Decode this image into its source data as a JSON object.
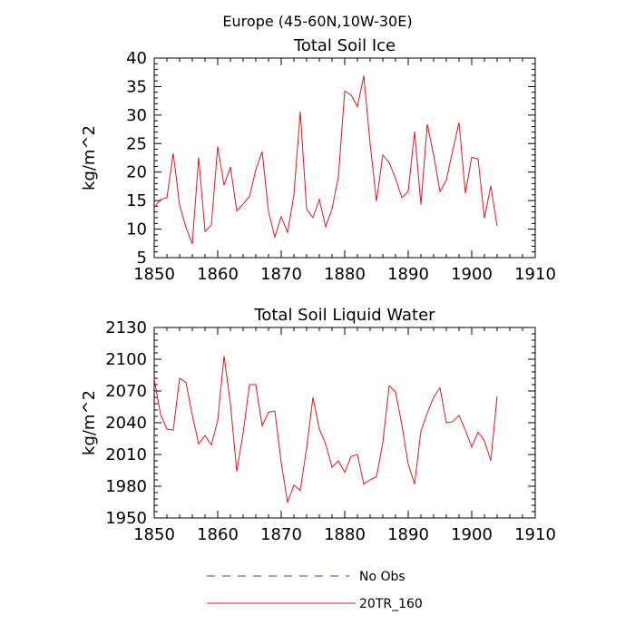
{
  "figure_title": "Europe (45-60N,10W-30E)",
  "legend": {
    "entries": [
      {
        "label": "No Obs",
        "color": "#3b3bd6",
        "dash": "dashed"
      },
      {
        "label": "20TR_160",
        "color": "#e8141a",
        "dash": "solid"
      }
    ],
    "placement": "bottom-center"
  },
  "chart_data": [
    {
      "type": "line",
      "title": "Total Soil Ice",
      "xlabel": "",
      "ylabel": "kg/m^2",
      "xlim": [
        1850,
        1910
      ],
      "ylim": [
        5,
        40
      ],
      "xticks": [
        1850,
        1860,
        1870,
        1880,
        1890,
        1900,
        1910
      ],
      "yticks": [
        5,
        10,
        15,
        20,
        25,
        30,
        35,
        40
      ],
      "grid": false,
      "series": [
        {
          "name": "20TR_160",
          "color": "#e8141a",
          "x": [
            1850,
            1851,
            1852,
            1853,
            1854,
            1855,
            1856,
            1857,
            1858,
            1859,
            1860,
            1861,
            1862,
            1863,
            1864,
            1865,
            1866,
            1867,
            1868,
            1869,
            1870,
            1871,
            1872,
            1873,
            1874,
            1875,
            1876,
            1877,
            1878,
            1879,
            1880,
            1881,
            1882,
            1883,
            1884,
            1885,
            1886,
            1887,
            1888,
            1889,
            1890,
            1891,
            1892,
            1893,
            1894,
            1895,
            1896,
            1897,
            1898,
            1899,
            1900,
            1901,
            1902,
            1903,
            1904
          ],
          "y": [
            13.8,
            15.2,
            15.5,
            23.3,
            14.2,
            10.3,
            7.4,
            22.6,
            9.6,
            10.7,
            24.5,
            17.7,
            20.9,
            13.2,
            14.4,
            15.7,
            20.4,
            23.6,
            13.1,
            8.6,
            12.2,
            9.4,
            16.0,
            30.6,
            13.5,
            12.0,
            15.2,
            10.4,
            13.6,
            19.1,
            34.2,
            33.5,
            31.5,
            36.9,
            25.0,
            14.9,
            23.0,
            21.7,
            18.9,
            15.5,
            16.6,
            27.1,
            14.3,
            28.4,
            23.0,
            16.6,
            18.6,
            23.8,
            28.7,
            16.3,
            22.6,
            22.3,
            11.9,
            17.6,
            10.5
          ]
        }
      ]
    },
    {
      "type": "line",
      "title": "Total Soil Liquid Water",
      "xlabel": "",
      "ylabel": "kg/m^2",
      "xlim": [
        1850,
        1910
      ],
      "ylim": [
        1950,
        2130
      ],
      "xticks": [
        1850,
        1860,
        1870,
        1880,
        1890,
        1900,
        1910
      ],
      "yticks": [
        1950,
        1980,
        2010,
        2040,
        2070,
        2100,
        2130
      ],
      "grid": false,
      "series": [
        {
          "name": "20TR_160",
          "color": "#e8141a",
          "x": [
            1850,
            1851,
            1852,
            1853,
            1854,
            1855,
            1856,
            1857,
            1858,
            1859,
            1860,
            1861,
            1862,
            1863,
            1864,
            1865,
            1866,
            1867,
            1868,
            1869,
            1870,
            1871,
            1872,
            1873,
            1874,
            1875,
            1876,
            1877,
            1878,
            1879,
            1880,
            1881,
            1882,
            1883,
            1884,
            1885,
            1886,
            1887,
            1888,
            1889,
            1890,
            1891,
            1892,
            1893,
            1894,
            1895,
            1896,
            1897,
            1898,
            1899,
            1900,
            1901,
            1902,
            1903,
            1904
          ],
          "y": [
            2081,
            2048,
            2034,
            2033,
            2082,
            2078,
            2047,
            2020,
            2028,
            2019,
            2042,
            2103,
            2058,
            1994,
            2030,
            2076,
            2076,
            2037,
            2050,
            2051,
            2002,
            1965,
            1981,
            1976,
            2016,
            2064,
            2034,
            2020,
            1998,
            2004,
            1993,
            2008,
            2010,
            1982,
            1986,
            1989,
            2021,
            2075,
            2069,
            2038,
            2001,
            1982,
            2032,
            2049,
            2064,
            2073,
            2040,
            2041,
            2047,
            2033,
            2017,
            2031,
            2023,
            2004,
            2065
          ]
        }
      ]
    }
  ]
}
